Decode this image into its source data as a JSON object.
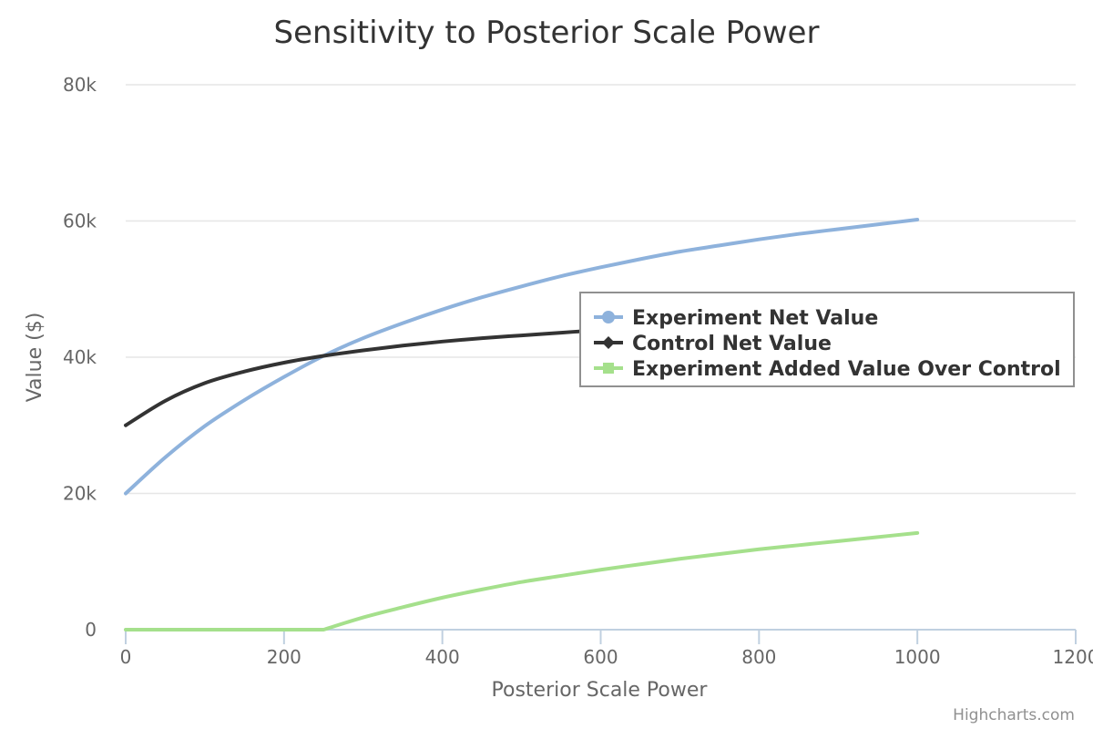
{
  "chart_data": {
    "type": "line",
    "title": "Sensitivity to Posterior Scale Power",
    "xlabel": "Posterior Scale Power",
    "ylabel": "Value ($)",
    "xlim": [
      0,
      1200
    ],
    "ylim": [
      0,
      80000
    ],
    "x_ticks": [
      0,
      200,
      400,
      600,
      800,
      1000,
      1200
    ],
    "x_tick_labels": [
      "0",
      "200",
      "400",
      "600",
      "800",
      "1000",
      "1200"
    ],
    "y_ticks": [
      0,
      20000,
      40000,
      60000,
      80000
    ],
    "y_tick_labels": [
      "0",
      "20k",
      "40k",
      "60k",
      "80k"
    ],
    "grid": "horizontal",
    "legend_position": "right",
    "credits": "Highcharts.com",
    "series": [
      {
        "name": "Experiment Net Value",
        "color": "#8eb2dc",
        "marker": "circle",
        "x": [
          0,
          50,
          100,
          150,
          200,
          250,
          300,
          350,
          400,
          450,
          500,
          550,
          600,
          650,
          700,
          750,
          800,
          850,
          900,
          950,
          1000
        ],
        "values": [
          20000,
          25300,
          29900,
          33700,
          37100,
          40200,
          42800,
          45000,
          47000,
          48800,
          50400,
          51900,
          53200,
          54400,
          55500,
          56400,
          57300,
          58100,
          58800,
          59500,
          60200
        ]
      },
      {
        "name": "Control Net Value",
        "color": "#333333",
        "marker": "diamond",
        "x": [
          0,
          50,
          100,
          150,
          200,
          250,
          300,
          350,
          400,
          450,
          500,
          550,
          600,
          650,
          700,
          750,
          800,
          850,
          900,
          950,
          1000
        ],
        "values": [
          30000,
          33600,
          36200,
          37900,
          39200,
          40200,
          41000,
          41700,
          42300,
          42800,
          43200,
          43600,
          44000,
          44300,
          44600,
          44900,
          45200,
          45400,
          45600,
          45800,
          46000
        ]
      },
      {
        "name": "Experiment Added Value Over Control",
        "color": "#a5e08c",
        "marker": "square",
        "x": [
          0,
          50,
          100,
          150,
          200,
          250,
          300,
          350,
          400,
          450,
          500,
          550,
          600,
          650,
          700,
          750,
          800,
          850,
          900,
          950,
          1000
        ],
        "values": [
          0,
          0,
          0,
          0,
          0,
          0,
          1800,
          3300,
          4700,
          5900,
          7000,
          7900,
          8800,
          9600,
          10400,
          11100,
          11800,
          12400,
          13000,
          13600,
          14200
        ]
      }
    ]
  }
}
